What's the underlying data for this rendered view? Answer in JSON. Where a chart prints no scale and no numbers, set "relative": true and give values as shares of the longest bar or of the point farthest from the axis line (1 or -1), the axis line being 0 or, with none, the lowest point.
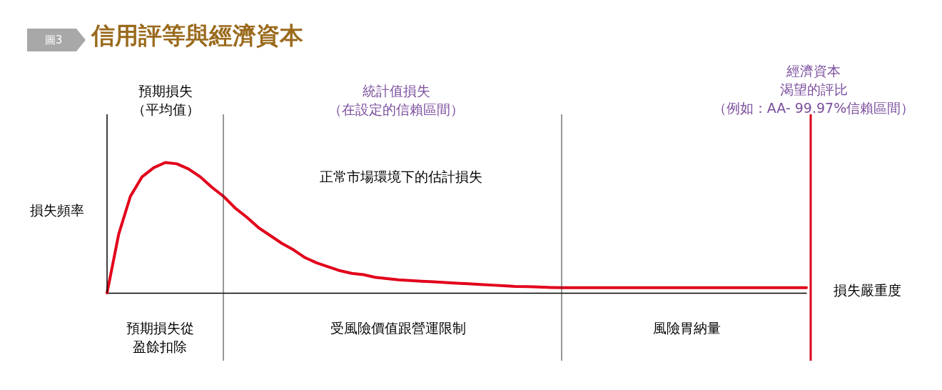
{
  "chart_data": {
    "type": "line",
    "title": "信用評等與經濟資本",
    "subtitle": "圖3",
    "xlabel": "損失嚴重度",
    "ylabel": "損失頻率",
    "relative": true,
    "categories": [
      null,
      null,
      null,
      null,
      null,
      null,
      null,
      null,
      null,
      null,
      null,
      null,
      null,
      null,
      null,
      null,
      null,
      null,
      null,
      null,
      null,
      null,
      null,
      null,
      null,
      null,
      null,
      null,
      null,
      null,
      null,
      null,
      null,
      null,
      null,
      null,
      null,
      null,
      null,
      null,
      null,
      null,
      null,
      null,
      null,
      null,
      null,
      null,
      null,
      null,
      null,
      null,
      null,
      null,
      null,
      null,
      null,
      null,
      null,
      null,
      null
    ],
    "series": [
      {
        "color": "#e2001a",
        "values": [
          0,
          0.45,
          0.74,
          0.89,
          0.96,
          1.0,
          0.99,
          0.95,
          0.89,
          0.81,
          0.74,
          0.65,
          0.58,
          0.5,
          0.44,
          0.38,
          0.33,
          0.27,
          0.23,
          0.2,
          0.17,
          0.15,
          0.14,
          0.12,
          0.11,
          0.1,
          0.095,
          0.09,
          0.085,
          0.08,
          0.075,
          0.07,
          0.065,
          0.06,
          0.055,
          0.05,
          0.048,
          0.045,
          0.042,
          0.04,
          0.04,
          0.04,
          0.04,
          0.04,
          0.04,
          0.04,
          0.04,
          0.04,
          0.04,
          0.04,
          0.04,
          0.04,
          0.04,
          0.04,
          0.04,
          0.04,
          0.04,
          0.04,
          0.04,
          0.04,
          0.04
        ]
      }
    ],
    "annotations": [
      "預期損失（平均值）",
      "統計值損失（在設定的信賴區間）",
      "經濟資本渴望的評比（例如：AA- 99.97%信賴區間）",
      "正常市場環境下的估計損失",
      "預期損失從盈餘扣除",
      "受風險價值跟營運限制",
      "風險胃納量"
    ]
  }
}
